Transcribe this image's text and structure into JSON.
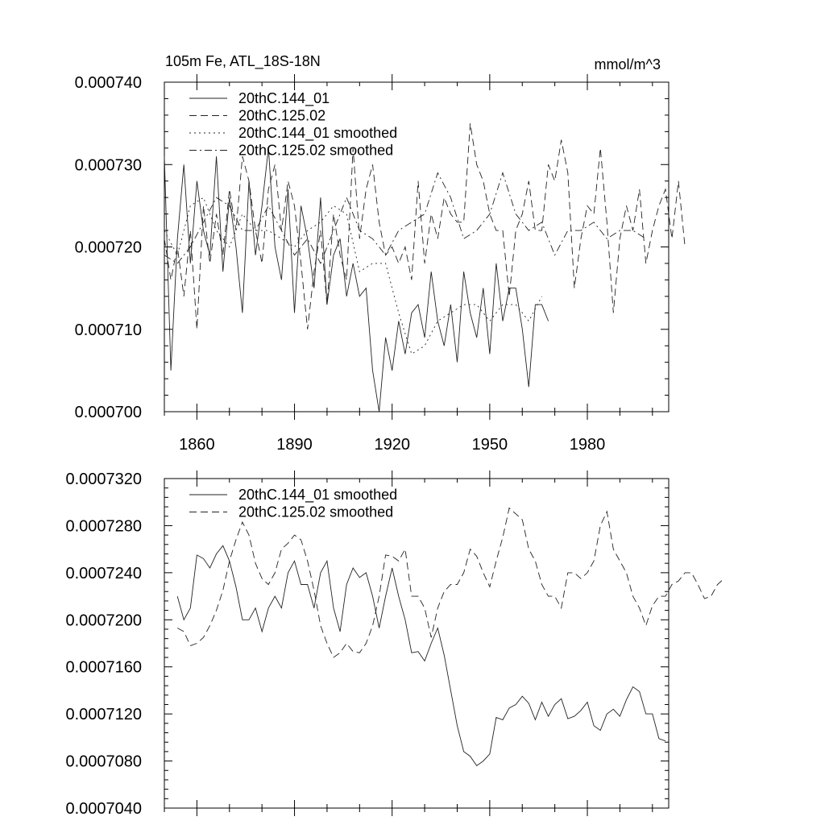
{
  "chart_data": [
    {
      "type": "line",
      "title_left": "105m Fe, ATL_18S-18N",
      "title_right": "mmol/m^3",
      "xlim": [
        1850,
        2005
      ],
      "ylim": [
        0.0007,
        0.00074
      ],
      "x_ticks": [
        1860,
        1890,
        1920,
        1950,
        1980
      ],
      "x_tick_labels": [
        "1860",
        "1890",
        "1920",
        "1950",
        "1980"
      ],
      "y_ticks": [
        0.0007,
        0.00071,
        0.00072,
        0.00073,
        0.00074
      ],
      "y_tick_labels": [
        "0.000700",
        "0.000710",
        "0.000720",
        "0.000730",
        "0.000740"
      ],
      "legend": [
        {
          "label": "20thC.144_01",
          "dash": "solid"
        },
        {
          "label": "20thC.125.02",
          "dash": "dashed"
        },
        {
          "label": "20thC.144_01 smoothed",
          "dash": "dotted"
        },
        {
          "label": "20thC.125.02 smoothed",
          "dash": "dashdot"
        }
      ],
      "series": [
        {
          "name": "20thC.144_01",
          "dash": "solid",
          "x_start": 1850,
          "x_step": 2,
          "values": [
            0.000731,
            0.000705,
            0.000721,
            0.00073,
            0.000718,
            0.000728,
            0.000722,
            0.000719,
            0.000731,
            0.000717,
            0.000726,
            0.00072,
            0.000712,
            0.000728,
            0.000719,
            0.000725,
            0.000732,
            0.00072,
            0.000716,
            0.000727,
            0.000712,
            0.000725,
            0.000721,
            0.000715,
            0.000726,
            0.000713,
            0.000719,
            0.000721,
            0.000714,
            0.000718,
            0.000714,
            0.000715,
            0.000705,
            0.0007,
            0.000709,
            0.000705,
            0.000711,
            0.000707,
            0.000712,
            0.000713,
            0.000709,
            0.000717,
            0.000711,
            0.000708,
            0.000713,
            0.000706,
            0.000717,
            0.000712,
            0.000709,
            0.000715,
            0.000707,
            0.000718,
            0.000711,
            0.000715,
            0.000715,
            0.00071,
            0.000703,
            0.000713,
            0.000713,
            0.000711
          ]
        },
        {
          "name": "20thC.125.02",
          "dash": "dashed",
          "x_start": 1850,
          "x_step": 2,
          "values": [
            0.000721,
            0.000716,
            0.00072,
            0.000714,
            0.000722,
            0.00071,
            0.000725,
            0.000718,
            0.000724,
            0.000719,
            0.000727,
            0.000722,
            0.000731,
            0.000728,
            0.000722,
            0.000718,
            0.000727,
            0.00073,
            0.000722,
            0.000728,
            0.000725,
            0.000718,
            0.00071,
            0.000717,
            0.000722,
            0.000713,
            0.000724,
            0.000719,
            0.000716,
            0.000732,
            0.000721,
            0.000727,
            0.00073,
            0.000723,
            0.000719,
            0.00072,
            0.000718,
            0.00072,
            0.000716,
            0.000728,
            0.000718,
            0.000724,
            0.000721,
            0.000726,
            0.000724,
            0.000723,
            0.000723,
            0.000735,
            0.00073,
            0.000728,
            0.000724,
            0.000722,
            0.000722,
            0.000714,
            0.000722,
            0.000724,
            0.000728,
            0.000722,
            0.000722,
            0.00073,
            0.000728,
            0.000733,
            0.000729,
            0.000715,
            0.000721,
            0.000725,
            0.000724,
            0.000732,
            0.000723,
            0.000712,
            0.000721,
            0.000725,
            0.000722,
            0.000727,
            0.000718,
            0.000722,
            0.000725,
            0.000727,
            0.000721,
            0.000728,
            0.00072
          ]
        },
        {
          "name": "20thC.144_01 smoothed",
          "dash": "dotted",
          "x_start": 1850,
          "x_step": 4,
          "values": [
            0.000722,
            0.000719,
            0.000725,
            0.000726,
            0.000722,
            0.00072,
            0.000724,
            0.000722,
            0.000722,
            0.000721,
            0.00072,
            0.000722,
            0.000723,
            0.000725,
            0.000724,
            0.000717,
            0.000718,
            0.000718,
            0.000712,
            0.000707,
            0.000708,
            0.000711,
            0.000712,
            0.000713,
            0.000713,
            0.000711,
            0.000713,
            0.000713,
            0.000711,
            0.000714
          ]
        },
        {
          "name": "20thC.125.02 smoothed",
          "dash": "dashdot",
          "x_start": 1850,
          "x_step": 4,
          "values": [
            0.000719,
            0.000718,
            0.00072,
            0.000723,
            0.000726,
            0.000725,
            0.000722,
            0.000722,
            0.000725,
            0.000722,
            0.000719,
            0.000721,
            0.000718,
            0.000722,
            0.000726,
            0.000722,
            0.000721,
            0.000719,
            0.000722,
            0.000723,
            0.000724,
            0.000729,
            0.000726,
            0.000721,
            0.000722,
            0.000724,
            0.000729,
            0.000724,
            0.000722,
            0.000723,
            0.000719,
            0.000722,
            0.000722,
            0.000723,
            0.000721,
            0.000722,
            0.000722,
            0.000721
          ]
        }
      ]
    },
    {
      "type": "line",
      "xlim": [
        1850,
        2005
      ],
      "ylim": [
        0.000704,
        0.000732
      ],
      "x_ticks": [
        1860,
        1890,
        1920,
        1950,
        1980
      ],
      "y_ticks": [
        0.000704,
        0.000708,
        0.000712,
        0.000716,
        0.00072,
        0.000724,
        0.000728,
        0.000732
      ],
      "y_tick_labels": [
        "0.0007040",
        "0.0007080",
        "0.0007120",
        "0.0007160",
        "0.0007200",
        "0.0007240",
        "0.0007280",
        "0.0007320"
      ],
      "legend": [
        {
          "label": "20thC.144_01 smoothed",
          "dash": "solid"
        },
        {
          "label": "20thC.125.02 smoothed",
          "dash": "dashed"
        }
      ],
      "series": [
        {
          "name": "20thC.144_01 smoothed",
          "dash": "solid",
          "x_start": 1854,
          "x_step": 2,
          "values": [
            0.000722,
            0.00072,
            0.000721,
            0.0007255,
            0.0007252,
            0.0007244,
            0.0007256,
            0.0007263,
            0.000725,
            0.0007228,
            0.00072,
            0.00072,
            0.000721,
            0.000719,
            0.000721,
            0.000722,
            0.000721,
            0.000724,
            0.000725,
            0.000723,
            0.000723,
            0.000721,
            0.000724,
            0.000725,
            0.000721,
            0.000719,
            0.000723,
            0.0007244,
            0.0007236,
            0.000724,
            0.000722,
            0.0007193,
            0.000722,
            0.0007244,
            0.000722,
            0.00072,
            0.0007172,
            0.0007173,
            0.0007165,
            0.000718,
            0.0007193,
            0.000717,
            0.000714,
            0.000711,
            0.0007088,
            0.0007084,
            0.0007076,
            0.000708,
            0.0007086,
            0.0007117,
            0.0007115,
            0.0007125,
            0.0007128,
            0.0007135,
            0.0007129,
            0.0007115,
            0.000713,
            0.0007118,
            0.0007128,
            0.0007133,
            0.0007116,
            0.0007118,
            0.0007123,
            0.000713,
            0.000711,
            0.0007106,
            0.000712,
            0.0007124,
            0.0007118,
            0.0007132,
            0.0007143,
            0.0007139,
            0.000712,
            0.000712,
            0.0007099,
            0.0007097
          ]
        },
        {
          "name": "20thC.125.02 smoothed",
          "dash": "dashed",
          "x_start": 1854,
          "x_step": 2,
          "values": [
            0.0007193,
            0.000719,
            0.0007178,
            0.000718,
            0.0007185,
            0.0007195,
            0.0007208,
            0.0007225,
            0.000725,
            0.0007268,
            0.0007283,
            0.0007272,
            0.0007248,
            0.0007235,
            0.000723,
            0.000724,
            0.000726,
            0.0007265,
            0.0007272,
            0.0007268,
            0.000725,
            0.0007225,
            0.0007195,
            0.000718,
            0.0007168,
            0.0007172,
            0.000718,
            0.0007173,
            0.0007172,
            0.000718,
            0.0007195,
            0.000722,
            0.0007255,
            0.0007254,
            0.000725,
            0.000726,
            0.000722,
            0.000722,
            0.000721,
            0.0007185,
            0.000721,
            0.0007224,
            0.000723,
            0.000723,
            0.000724,
            0.000726,
            0.0007254,
            0.000724,
            0.0007228,
            0.000725,
            0.000727,
            0.0007295,
            0.000729,
            0.0007285,
            0.000726,
            0.000725,
            0.000723,
            0.000722,
            0.000722,
            0.000721,
            0.000724,
            0.000724,
            0.0007235,
            0.000724,
            0.000725,
            0.000728,
            0.0007292,
            0.000726,
            0.000725,
            0.000724,
            0.000722,
            0.000721,
            0.0007195,
            0.0007212,
            0.000722,
            0.000722,
            0.000723,
            0.0007233,
            0.000724,
            0.000724,
            0.000723,
            0.0007218,
            0.000722,
            0.000723,
            0.0007235
          ]
        }
      ]
    }
  ]
}
